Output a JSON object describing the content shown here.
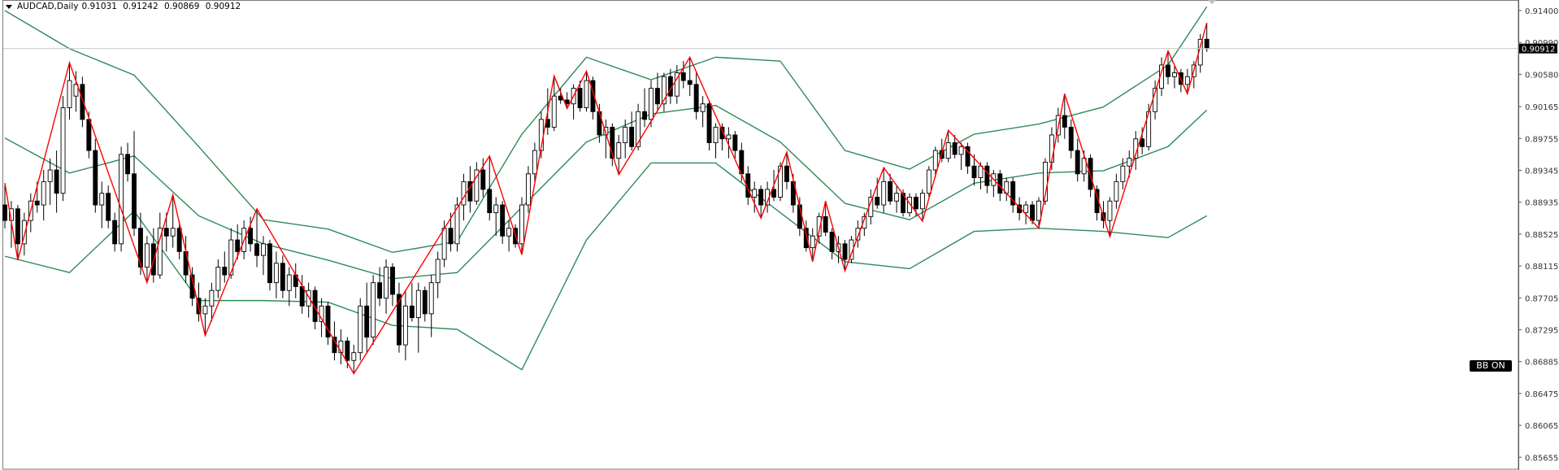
{
  "header": {
    "symbol_timeframe": "AUDCAD,Daily",
    "open": "0.91031",
    "high": "0.91242",
    "low": "0.90869",
    "close": "0.90912"
  },
  "bb_button": {
    "label": "BB ON"
  },
  "colors": {
    "bands": "#2e8b57",
    "zigzag": "#ff0000",
    "bull_body": "#ffffff",
    "bear_body": "#000000",
    "price_line": "#c8c8c8"
  },
  "chart_data": {
    "type": "candlestick",
    "symbol": "AUDCAD",
    "timeframe": "Daily",
    "ylim": [
      0.8551,
      0.9154
    ],
    "grid": false,
    "y_ticks": [
      "0.91400",
      "0.90990",
      "0.90580",
      "0.90165",
      "0.89755",
      "0.89345",
      "0.88935",
      "0.88525",
      "0.88115",
      "0.87705",
      "0.87295",
      "0.86885",
      "0.86475",
      "0.86065",
      "0.85655"
    ],
    "current_price": "0.90912",
    "candles": [
      [
        0.889,
        0.8918,
        0.886,
        0.887
      ],
      [
        0.887,
        0.8895,
        0.8835,
        0.8885
      ],
      [
        0.8885,
        0.889,
        0.8819,
        0.884
      ],
      [
        0.884,
        0.888,
        0.8825,
        0.887
      ],
      [
        0.887,
        0.8905,
        0.8855,
        0.8895
      ],
      [
        0.8895,
        0.892,
        0.888,
        0.889
      ],
      [
        0.889,
        0.8935,
        0.887,
        0.892
      ],
      [
        0.892,
        0.895,
        0.889,
        0.8935
      ],
      [
        0.8935,
        0.896,
        0.888,
        0.8905
      ],
      [
        0.8905,
        0.903,
        0.8895,
        0.9015
      ],
      [
        0.9015,
        0.9073,
        0.9,
        0.905
      ],
      [
        0.903,
        0.9062,
        0.901,
        0.9045
      ],
      [
        0.9045,
        0.9055,
        0.899,
        0.9
      ],
      [
        0.9,
        0.901,
        0.895,
        0.896
      ],
      [
        0.896,
        0.8975,
        0.888,
        0.889
      ],
      [
        0.889,
        0.892,
        0.886,
        0.8905
      ],
      [
        0.8905,
        0.8915,
        0.886,
        0.887
      ],
      [
        0.887,
        0.888,
        0.883,
        0.884
      ],
      [
        0.884,
        0.8965,
        0.883,
        0.8955
      ],
      [
        0.8955,
        0.897,
        0.892,
        0.893
      ],
      [
        0.893,
        0.8985,
        0.885,
        0.886
      ],
      [
        0.886,
        0.888,
        0.88,
        0.881
      ],
      [
        0.881,
        0.885,
        0.879,
        0.884
      ],
      [
        0.884,
        0.886,
        0.879,
        0.88
      ],
      [
        0.88,
        0.888,
        0.8795,
        0.886
      ],
      [
        0.886,
        0.888,
        0.883,
        0.885
      ],
      [
        0.885,
        0.8903,
        0.8835,
        0.886
      ],
      [
        0.886,
        0.887,
        0.882,
        0.883
      ],
      [
        0.883,
        0.885,
        0.879,
        0.88
      ],
      [
        0.88,
        0.881,
        0.876,
        0.877
      ],
      [
        0.877,
        0.879,
        0.874,
        0.875
      ],
      [
        0.875,
        0.877,
        0.8722,
        0.876
      ],
      [
        0.876,
        0.879,
        0.874,
        0.878
      ],
      [
        0.878,
        0.882,
        0.877,
        0.881
      ],
      [
        0.881,
        0.883,
        0.879,
        0.88
      ],
      [
        0.88,
        0.886,
        0.8795,
        0.8845
      ],
      [
        0.8845,
        0.8865,
        0.882,
        0.883
      ],
      [
        0.883,
        0.887,
        0.882,
        0.886
      ],
      [
        0.886,
        0.8875,
        0.883,
        0.884
      ],
      [
        0.884,
        0.8885,
        0.881,
        0.8825
      ],
      [
        0.8825,
        0.885,
        0.88,
        0.884
      ],
      [
        0.884,
        0.8845,
        0.878,
        0.879
      ],
      [
        0.879,
        0.883,
        0.877,
        0.8815
      ],
      [
        0.8815,
        0.8825,
        0.877,
        0.878
      ],
      [
        0.878,
        0.881,
        0.876,
        0.88
      ],
      [
        0.88,
        0.8815,
        0.877,
        0.8785
      ],
      [
        0.8785,
        0.88,
        0.875,
        0.876
      ],
      [
        0.876,
        0.879,
        0.8745,
        0.878
      ],
      [
        0.878,
        0.8785,
        0.873,
        0.874
      ],
      [
        0.874,
        0.877,
        0.872,
        0.876
      ],
      [
        0.876,
        0.8765,
        0.871,
        0.872
      ],
      [
        0.872,
        0.874,
        0.869,
        0.87
      ],
      [
        0.87,
        0.873,
        0.8685,
        0.8715
      ],
      [
        0.8715,
        0.872,
        0.868,
        0.869
      ],
      [
        0.869,
        0.871,
        0.8673,
        0.87
      ],
      [
        0.87,
        0.877,
        0.869,
        0.876
      ],
      [
        0.876,
        0.879,
        0.87,
        0.872
      ],
      [
        0.872,
        0.88,
        0.871,
        0.879
      ],
      [
        0.879,
        0.881,
        0.876,
        0.877
      ],
      [
        0.877,
        0.882,
        0.875,
        0.881
      ],
      [
        0.881,
        0.8815,
        0.876,
        0.8775
      ],
      [
        0.8775,
        0.879,
        0.87,
        0.871
      ],
      [
        0.871,
        0.878,
        0.869,
        0.876
      ],
      [
        0.876,
        0.879,
        0.874,
        0.8745
      ],
      [
        0.8745,
        0.879,
        0.87,
        0.878
      ],
      [
        0.878,
        0.8785,
        0.874,
        0.875
      ],
      [
        0.875,
        0.88,
        0.872,
        0.879
      ],
      [
        0.879,
        0.883,
        0.877,
        0.882
      ],
      [
        0.882,
        0.887,
        0.881,
        0.886
      ],
      [
        0.886,
        0.888,
        0.883,
        0.884
      ],
      [
        0.884,
        0.89,
        0.883,
        0.889
      ],
      [
        0.889,
        0.893,
        0.887,
        0.892
      ],
      [
        0.892,
        0.894,
        0.888,
        0.8895
      ],
      [
        0.8895,
        0.8945,
        0.889,
        0.8935
      ],
      [
        0.8935,
        0.895,
        0.89,
        0.891
      ],
      [
        0.891,
        0.8953,
        0.887,
        0.888
      ],
      [
        0.888,
        0.89,
        0.885,
        0.889
      ],
      [
        0.889,
        0.8895,
        0.884,
        0.885
      ],
      [
        0.885,
        0.887,
        0.883,
        0.886
      ],
      [
        0.886,
        0.8865,
        0.8835,
        0.884
      ],
      [
        0.884,
        0.89,
        0.8826,
        0.889
      ],
      [
        0.889,
        0.894,
        0.888,
        0.893
      ],
      [
        0.893,
        0.897,
        0.892,
        0.896
      ],
      [
        0.896,
        0.901,
        0.895,
        0.9
      ],
      [
        0.9,
        0.904,
        0.898,
        0.899
      ],
      [
        0.899,
        0.9056,
        0.8985,
        0.903
      ],
      [
        0.903,
        0.904,
        0.902,
        0.9025
      ],
      [
        0.9025,
        0.9035,
        0.9014,
        0.902
      ],
      [
        0.902,
        0.9045,
        0.9,
        0.904
      ],
      [
        0.904,
        0.905,
        0.901,
        0.9015
      ],
      [
        0.9015,
        0.9062,
        0.901,
        0.905
      ],
      [
        0.905,
        0.9055,
        0.9,
        0.901
      ],
      [
        0.901,
        0.902,
        0.897,
        0.898
      ],
      [
        0.898,
        0.9,
        0.895,
        0.899
      ],
      [
        0.899,
        0.8995,
        0.894,
        0.895
      ],
      [
        0.895,
        0.898,
        0.8929,
        0.897
      ],
      [
        0.897,
        0.9,
        0.895,
        0.899
      ],
      [
        0.899,
        0.901,
        0.896,
        0.8965
      ],
      [
        0.8965,
        0.902,
        0.896,
        0.901
      ],
      [
        0.901,
        0.904,
        0.899,
        0.9
      ],
      [
        0.9,
        0.905,
        0.899,
        0.904
      ],
      [
        0.904,
        0.906,
        0.901,
        0.902
      ],
      [
        0.902,
        0.906,
        0.901,
        0.9055
      ],
      [
        0.9055,
        0.9065,
        0.902,
        0.903
      ],
      [
        0.903,
        0.907,
        0.902,
        0.906
      ],
      [
        0.906,
        0.9075,
        0.904,
        0.905
      ],
      [
        0.905,
        0.908,
        0.903,
        0.9045
      ],
      [
        0.9045,
        0.906,
        0.9,
        0.901
      ],
      [
        0.901,
        0.903,
        0.899,
        0.902
      ],
      [
        0.902,
        0.9025,
        0.896,
        0.897
      ],
      [
        0.897,
        0.8995,
        0.895,
        0.899
      ],
      [
        0.899,
        0.8995,
        0.896,
        0.8975
      ],
      [
        0.8975,
        0.899,
        0.895,
        0.898
      ],
      [
        0.898,
        0.8985,
        0.895,
        0.896
      ],
      [
        0.896,
        0.897,
        0.892,
        0.893
      ],
      [
        0.893,
        0.894,
        0.889,
        0.89
      ],
      [
        0.89,
        0.892,
        0.888,
        0.891
      ],
      [
        0.891,
        0.8915,
        0.8873,
        0.889
      ],
      [
        0.889,
        0.892,
        0.888,
        0.891
      ],
      [
        0.891,
        0.8935,
        0.8895,
        0.89
      ],
      [
        0.89,
        0.8945,
        0.8895,
        0.894
      ],
      [
        0.894,
        0.8958,
        0.891,
        0.892
      ],
      [
        0.892,
        0.893,
        0.888,
        0.889
      ],
      [
        0.889,
        0.89,
        0.885,
        0.886
      ],
      [
        0.886,
        0.887,
        0.883,
        0.8835
      ],
      [
        0.8835,
        0.886,
        0.8817,
        0.885
      ],
      [
        0.885,
        0.888,
        0.884,
        0.8875
      ],
      [
        0.8875,
        0.8895,
        0.885,
        0.8855
      ],
      [
        0.8855,
        0.886,
        0.882,
        0.883
      ],
      [
        0.883,
        0.885,
        0.8815,
        0.884
      ],
      [
        0.884,
        0.8845,
        0.8805,
        0.882
      ],
      [
        0.882,
        0.885,
        0.8815,
        0.8845
      ],
      [
        0.8845,
        0.887,
        0.8835,
        0.886
      ],
      [
        0.886,
        0.888,
        0.885,
        0.8875
      ],
      [
        0.8875,
        0.891,
        0.8865,
        0.89
      ],
      [
        0.89,
        0.8925,
        0.8885,
        0.889
      ],
      [
        0.889,
        0.8938,
        0.888,
        0.892
      ],
      [
        0.892,
        0.893,
        0.889,
        0.8895
      ],
      [
        0.8895,
        0.8915,
        0.888,
        0.8905
      ],
      [
        0.8905,
        0.891,
        0.8875,
        0.888
      ],
      [
        0.888,
        0.8905,
        0.8875,
        0.89
      ],
      [
        0.89,
        0.8905,
        0.8875,
        0.8885
      ],
      [
        0.8885,
        0.891,
        0.8869,
        0.8905
      ],
      [
        0.8905,
        0.894,
        0.89,
        0.8935
      ],
      [
        0.8935,
        0.8965,
        0.8925,
        0.896
      ],
      [
        0.896,
        0.8975,
        0.8945,
        0.895
      ],
      [
        0.895,
        0.8986,
        0.8945,
        0.897
      ],
      [
        0.897,
        0.898,
        0.895,
        0.8955
      ],
      [
        0.8955,
        0.897,
        0.8935,
        0.8965
      ],
      [
        0.8965,
        0.897,
        0.893,
        0.894
      ],
      [
        0.894,
        0.8955,
        0.8915,
        0.8925
      ],
      [
        0.8925,
        0.8945,
        0.891,
        0.894
      ],
      [
        0.894,
        0.8945,
        0.8905,
        0.8915
      ],
      [
        0.8915,
        0.8935,
        0.89,
        0.893
      ],
      [
        0.893,
        0.8935,
        0.8895,
        0.8905
      ],
      [
        0.8905,
        0.8925,
        0.8895,
        0.892
      ],
      [
        0.892,
        0.8925,
        0.888,
        0.889
      ],
      [
        0.889,
        0.89,
        0.887,
        0.888
      ],
      [
        0.888,
        0.8895,
        0.8865,
        0.889
      ],
      [
        0.889,
        0.8895,
        0.8865,
        0.887
      ],
      [
        0.887,
        0.89,
        0.886,
        0.8895
      ],
      [
        0.8895,
        0.895,
        0.889,
        0.8945
      ],
      [
        0.8945,
        0.899,
        0.8935,
        0.898
      ],
      [
        0.898,
        0.9015,
        0.897,
        0.9005
      ],
      [
        0.9005,
        0.9033,
        0.8975,
        0.899
      ],
      [
        0.899,
        0.9,
        0.895,
        0.896
      ],
      [
        0.896,
        0.8975,
        0.892,
        0.893
      ],
      [
        0.893,
        0.896,
        0.892,
        0.895
      ],
      [
        0.895,
        0.8955,
        0.89,
        0.891
      ],
      [
        0.891,
        0.8915,
        0.887,
        0.888
      ],
      [
        0.888,
        0.8895,
        0.886,
        0.887
      ],
      [
        0.887,
        0.89,
        0.8849,
        0.8895
      ],
      [
        0.8895,
        0.893,
        0.8885,
        0.892
      ],
      [
        0.892,
        0.895,
        0.891,
        0.894
      ],
      [
        0.894,
        0.896,
        0.8925,
        0.895
      ],
      [
        0.895,
        0.8985,
        0.8935,
        0.8975
      ],
      [
        0.8975,
        0.899,
        0.8955,
        0.8965
      ],
      [
        0.8965,
        0.902,
        0.896,
        0.901
      ],
      [
        0.901,
        0.905,
        0.9,
        0.904
      ],
      [
        0.904,
        0.908,
        0.903,
        0.907
      ],
      [
        0.907,
        0.9088,
        0.9045,
        0.9055
      ],
      [
        0.9055,
        0.907,
        0.904,
        0.906
      ],
      [
        0.906,
        0.9065,
        0.9035,
        0.9045
      ],
      [
        0.9045,
        0.9065,
        0.9033,
        0.9055
      ],
      [
        0.9055,
        0.9075,
        0.904,
        0.907
      ],
      [
        0.907,
        0.911,
        0.906,
        0.9103
      ],
      [
        0.91031,
        0.91242,
        0.90869,
        0.90912
      ]
    ],
    "bollinger": {
      "upper": [
        [
          0,
          0.914
        ],
        [
          10,
          0.9091
        ],
        [
          20,
          0.9057
        ],
        [
          30,
          0.8965
        ],
        [
          40,
          0.8871
        ],
        [
          50,
          0.8859
        ],
        [
          60,
          0.8829
        ],
        [
          70,
          0.8843
        ],
        [
          80,
          0.8981
        ],
        [
          90,
          0.908
        ],
        [
          100,
          0.9051
        ],
        [
          110,
          0.908
        ],
        [
          120,
          0.9075
        ],
        [
          130,
          0.896
        ],
        [
          140,
          0.8936
        ],
        [
          150,
          0.8981
        ],
        [
          160,
          0.8994
        ],
        [
          170,
          0.9016
        ],
        [
          180,
          0.907
        ],
        [
          186,
          0.9145
        ]
      ],
      "middle": [
        [
          0,
          0.8976
        ],
        [
          10,
          0.8931
        ],
        [
          20,
          0.8953
        ],
        [
          30,
          0.8876
        ],
        [
          40,
          0.884
        ],
        [
          50,
          0.8819
        ],
        [
          60,
          0.8795
        ],
        [
          70,
          0.8803
        ],
        [
          80,
          0.8887
        ],
        [
          90,
          0.8971
        ],
        [
          100,
          0.9007
        ],
        [
          110,
          0.9018
        ],
        [
          120,
          0.8971
        ],
        [
          130,
          0.8892
        ],
        [
          140,
          0.8871
        ],
        [
          150,
          0.8918
        ],
        [
          160,
          0.8931
        ],
        [
          170,
          0.8934
        ],
        [
          180,
          0.8965
        ],
        [
          186,
          0.9012
        ]
      ],
      "lower": [
        [
          0,
          0.8824
        ],
        [
          10,
          0.8803
        ],
        [
          20,
          0.8882
        ],
        [
          30,
          0.8767
        ],
        [
          40,
          0.8767
        ],
        [
          50,
          0.8765
        ],
        [
          60,
          0.8735
        ],
        [
          70,
          0.873
        ],
        [
          80,
          0.8678
        ],
        [
          90,
          0.8845
        ],
        [
          100,
          0.8944
        ],
        [
          110,
          0.8944
        ],
        [
          120,
          0.888
        ],
        [
          130,
          0.8817
        ],
        [
          140,
          0.8808
        ],
        [
          150,
          0.8856
        ],
        [
          160,
          0.886
        ],
        [
          170,
          0.8856
        ],
        [
          180,
          0.8848
        ],
        [
          186,
          0.8876
        ]
      ]
    },
    "zigzag": [
      [
        0,
        0.8918
      ],
      [
        2,
        0.8819
      ],
      [
        10,
        0.9073
      ],
      [
        22,
        0.879
      ],
      [
        26,
        0.8903
      ],
      [
        31,
        0.8722
      ],
      [
        39,
        0.8885
      ],
      [
        54,
        0.8673
      ],
      [
        75,
        0.8953
      ],
      [
        80,
        0.8826
      ],
      [
        85,
        0.9056
      ],
      [
        87,
        0.9014
      ],
      [
        90,
        0.9062
      ],
      [
        95,
        0.8929
      ],
      [
        106,
        0.908
      ],
      [
        117,
        0.8873
      ],
      [
        121,
        0.8958
      ],
      [
        125,
        0.8817
      ],
      [
        127,
        0.8895
      ],
      [
        130,
        0.8805
      ],
      [
        136,
        0.8938
      ],
      [
        142,
        0.8869
      ],
      [
        146,
        0.8986
      ],
      [
        160,
        0.886
      ],
      [
        164,
        0.9033
      ],
      [
        171,
        0.8849
      ],
      [
        180,
        0.9088
      ],
      [
        183,
        0.9033
      ],
      [
        186,
        0.91242
      ]
    ]
  }
}
